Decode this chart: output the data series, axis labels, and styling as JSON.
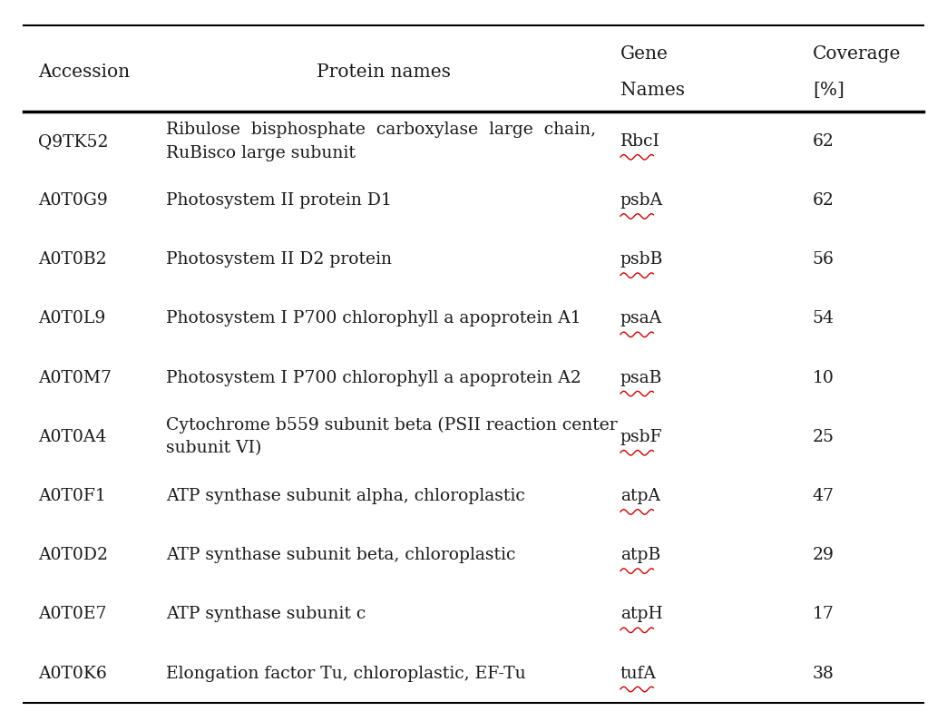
{
  "columns": [
    "Accession",
    "Protein names",
    "Gene\nNames",
    "Coverage\n[%]"
  ],
  "col_x": {
    "accession": 0.04,
    "protein": 0.175,
    "gene": 0.655,
    "coverage": 0.858
  },
  "rows": [
    {
      "accession": "Q9TK52",
      "protein_lines": [
        "Ribulose  bisphosphate  carboxylase  large  chain,",
        "RuBisco large subunit"
      ],
      "protein_rubisco_underline": true,
      "gene": "RbcI",
      "coverage": "62"
    },
    {
      "accession": "A0T0G9",
      "protein_lines": [
        "Photosystem II protein D1"
      ],
      "protein_rubisco_underline": false,
      "gene": "psbA",
      "coverage": "62"
    },
    {
      "accession": "A0T0B2",
      "protein_lines": [
        "Photosystem II D2 protein"
      ],
      "protein_rubisco_underline": false,
      "gene": "psbB",
      "coverage": "56"
    },
    {
      "accession": "A0T0L9",
      "protein_lines": [
        "Photosystem I P700 chlorophyll a apoprotein A1"
      ],
      "protein_rubisco_underline": false,
      "gene": "psaA",
      "coverage": "54"
    },
    {
      "accession": "A0T0M7",
      "protein_lines": [
        "Photosystem I P700 chlorophyll a apoprotein A2"
      ],
      "protein_rubisco_underline": false,
      "gene": "psaB",
      "coverage": "10"
    },
    {
      "accession": "A0T0A4",
      "protein_lines": [
        "Cytochrome b559 subunit beta (PSII reaction center",
        "subunit VI)"
      ],
      "protein_rubisco_underline": false,
      "gene": "psbF",
      "coverage": "25"
    },
    {
      "accession": "A0T0F1",
      "protein_lines": [
        "ATP synthase subunit alpha, chloroplastic"
      ],
      "protein_rubisco_underline": false,
      "gene": "atpA",
      "coverage": "47"
    },
    {
      "accession": "A0T0D2",
      "protein_lines": [
        "ATP synthase subunit beta, chloroplastic"
      ],
      "protein_rubisco_underline": false,
      "gene": "atpB",
      "coverage": "29"
    },
    {
      "accession": "A0T0E7",
      "protein_lines": [
        "ATP synthase subunit c"
      ],
      "protein_rubisco_underline": false,
      "gene": "atpH",
      "coverage": "17"
    },
    {
      "accession": "A0T0K6",
      "protein_lines": [
        "Elongation factor Tu, chloroplastic, EF-Tu"
      ],
      "protein_rubisco_underline": false,
      "gene": "tufA",
      "coverage": "38"
    }
  ],
  "underline_words": {
    "Q9TK52": "RuBisco",
    "A0T0F1": "chloroplastic",
    "A0T0D2": "chloroplastic",
    "A0T0K6": "chloroplastic"
  },
  "bg_color": "#ffffff",
  "text_color": "#1a1a1a",
  "gene_color": "#cc0000",
  "font_size": 13.5,
  "header_font_size": 14.5
}
